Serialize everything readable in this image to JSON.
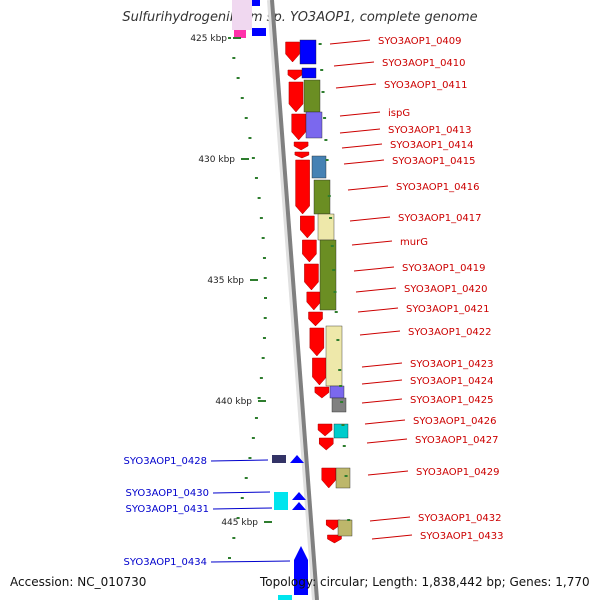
{
  "title": "Sulfurihydrogenibium sp. YO3AOP1, complete genome",
  "footer": {
    "accession": "Accession: NC_010730",
    "topology": "Topology: circular; Length: 1,838,442 bp; Genes: 1,770"
  },
  "ruler": {
    "unit": "kbp",
    "ticks": [
      {
        "label": "425 kbp"
      },
      {
        "label": "430 kbp"
      },
      {
        "label": "435 kbp"
      },
      {
        "label": "440 kbp"
      },
      {
        "label": "445 kbp"
      }
    ]
  },
  "colors": {
    "forward_gene": "#ff0000",
    "reverse_gene": "#0000ff",
    "forward_label": "#cc0000",
    "reverse_label": "#0000cc",
    "backbone": "#808080",
    "tick": "#2e7d2e"
  },
  "genes_forward": [
    "SYO3AOP1_0409",
    "SYO3AOP1_0410",
    "SYO3AOP1_0411",
    "ispG",
    "SYO3AOP1_0413",
    "SYO3AOP1_0414",
    "SYO3AOP1_0415",
    "SYO3AOP1_0416",
    "SYO3AOP1_0417",
    "murG",
    "SYO3AOP1_0419",
    "SYO3AOP1_0420",
    "SYO3AOP1_0421",
    "SYO3AOP1_0422",
    "SYO3AOP1_0423",
    "SYO3AOP1_0424",
    "SYO3AOP1_0425",
    "SYO3AOP1_0426",
    "SYO3AOP1_0427",
    "SYO3AOP1_0429",
    "SYO3AOP1_0432",
    "SYO3AOP1_0433"
  ],
  "genes_reverse": [
    "SYO3AOP1_0428",
    "SYO3AOP1_0430",
    "SYO3AOP1_0431",
    "SYO3AOP1_0434"
  ]
}
